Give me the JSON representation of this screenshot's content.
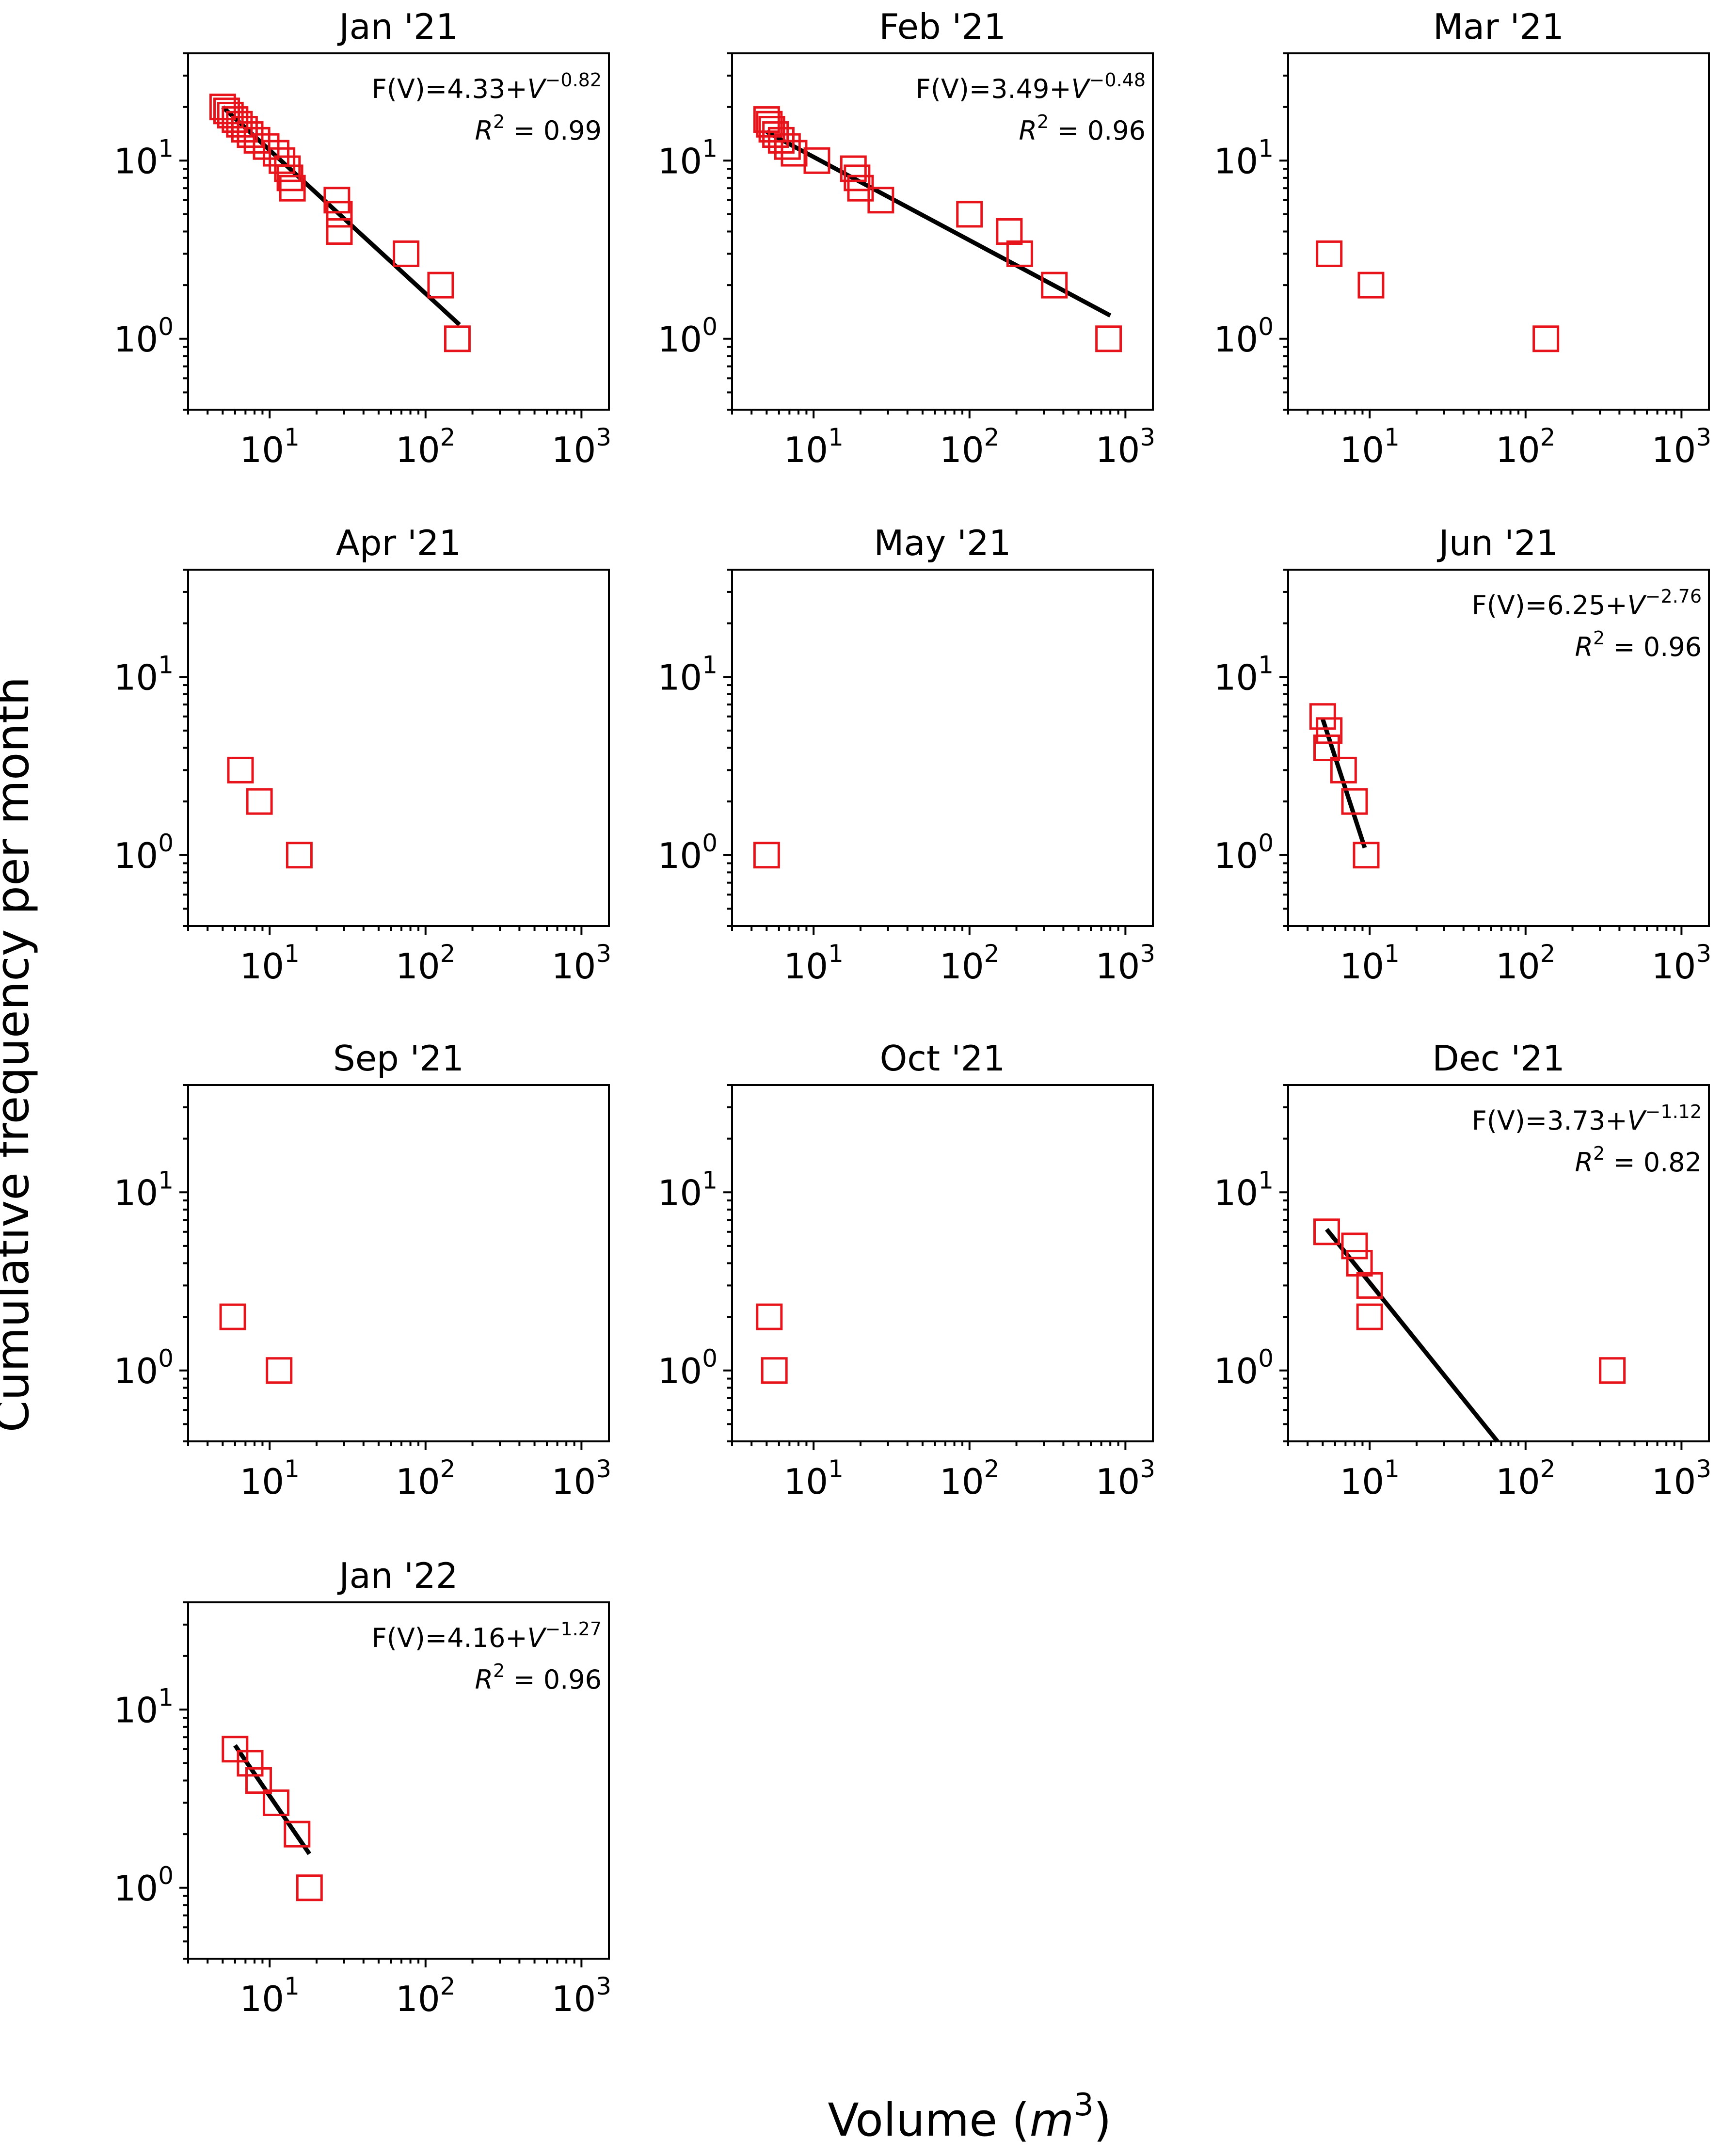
{
  "figure": {
    "xlabel": "Volume (m3)",
    "xlabel_parts": {
      "prefix": "Volume (",
      "var": "m",
      "sup": "3",
      "suffix": ")"
    },
    "ylabel": "Cumulative frequency per month",
    "colors": {
      "marker": "#e8141c",
      "fit": "#000000",
      "axes": "#000000"
    }
  },
  "chart_data": [
    {
      "type": "scatter",
      "title": "Jan '21",
      "xscale": "log",
      "yscale": "log",
      "xlim": [
        3,
        1500
      ],
      "ylim": [
        0.4,
        40
      ],
      "xticks": [
        {
          "base": "10",
          "exp": "1",
          "value": 10
        },
        {
          "base": "10",
          "exp": "2",
          "value": 100
        },
        {
          "base": "10",
          "exp": "3",
          "value": 1000
        }
      ],
      "yticks": [
        {
          "base": "10",
          "exp": "0",
          "value": 1
        },
        {
          "base": "10",
          "exp": "1",
          "value": 10
        }
      ],
      "points": [
        [
          5.0,
          20
        ],
        [
          5.3,
          19
        ],
        [
          5.6,
          18
        ],
        [
          6.0,
          17
        ],
        [
          6.4,
          16
        ],
        [
          6.9,
          15
        ],
        [
          7.5,
          14
        ],
        [
          8.3,
          13
        ],
        [
          9.5,
          12
        ],
        [
          11,
          11
        ],
        [
          12,
          10
        ],
        [
          13,
          9
        ],
        [
          13.5,
          8
        ],
        [
          14,
          7
        ],
        [
          27,
          6
        ],
        [
          28,
          5
        ],
        [
          28,
          4
        ],
        [
          75,
          3
        ],
        [
          125,
          2
        ],
        [
          160,
          1
        ]
      ],
      "fit": {
        "x": [
          5.0,
          165
        ],
        "y": [
          20,
          1.2
        ],
        "equation": {
          "text": "F(V)=4.33+",
          "var": "V",
          "exp": "−0.82"
        },
        "r2": {
          "var": "R",
          "exp": "2",
          "text": " = 0.99"
        }
      }
    },
    {
      "type": "scatter",
      "title": "Feb '21",
      "xscale": "log",
      "yscale": "log",
      "xlim": [
        3,
        1500
      ],
      "ylim": [
        0.4,
        40
      ],
      "xticks": [
        {
          "base": "10",
          "exp": "1",
          "value": 10
        },
        {
          "base": "10",
          "exp": "2",
          "value": 100
        },
        {
          "base": "10",
          "exp": "3",
          "value": 1000
        }
      ],
      "yticks": [
        {
          "base": "10",
          "exp": "0",
          "value": 1
        },
        {
          "base": "10",
          "exp": "1",
          "value": 10
        }
      ],
      "points": [
        [
          5.0,
          17
        ],
        [
          5.2,
          16
        ],
        [
          5.4,
          15
        ],
        [
          5.7,
          14
        ],
        [
          6.2,
          13
        ],
        [
          6.8,
          12
        ],
        [
          7.5,
          11
        ],
        [
          10.5,
          10
        ],
        [
          18,
          9
        ],
        [
          19,
          8
        ],
        [
          20,
          7
        ],
        [
          27,
          6
        ],
        [
          100,
          5
        ],
        [
          180,
          4
        ],
        [
          210,
          3
        ],
        [
          350,
          2
        ],
        [
          780,
          1
        ]
      ],
      "fit": {
        "x": [
          5.0,
          800
        ],
        "y": [
          14.5,
          1.35
        ],
        "equation": {
          "text": "F(V)=3.49+",
          "var": "V",
          "exp": "−0.48"
        },
        "r2": {
          "var": "R",
          "exp": "2",
          "text": " = 0.96"
        }
      }
    },
    {
      "type": "scatter",
      "title": "Mar '21",
      "xscale": "log",
      "yscale": "log",
      "xlim": [
        3,
        1500
      ],
      "ylim": [
        0.4,
        40
      ],
      "xticks": [
        {
          "base": "10",
          "exp": "1",
          "value": 10
        },
        {
          "base": "10",
          "exp": "2",
          "value": 100
        },
        {
          "base": "10",
          "exp": "3",
          "value": 1000
        }
      ],
      "yticks": [
        {
          "base": "10",
          "exp": "0",
          "value": 1
        },
        {
          "base": "10",
          "exp": "1",
          "value": 10
        }
      ],
      "points": [
        [
          5.5,
          3
        ],
        [
          10.2,
          2
        ],
        [
          135,
          1
        ]
      ],
      "fit": null
    },
    {
      "type": "scatter",
      "title": "Apr '21",
      "xscale": "log",
      "yscale": "log",
      "xlim": [
        3,
        1500
      ],
      "ylim": [
        0.4,
        40
      ],
      "xticks": [
        {
          "base": "10",
          "exp": "1",
          "value": 10
        },
        {
          "base": "10",
          "exp": "2",
          "value": 100
        },
        {
          "base": "10",
          "exp": "3",
          "value": 1000
        }
      ],
      "yticks": [
        {
          "base": "10",
          "exp": "0",
          "value": 1
        },
        {
          "base": "10",
          "exp": "1",
          "value": 10
        }
      ],
      "points": [
        [
          6.5,
          3
        ],
        [
          8.6,
          2
        ],
        [
          15.5,
          1
        ]
      ],
      "fit": null
    },
    {
      "type": "scatter",
      "title": "May '21",
      "xscale": "log",
      "yscale": "log",
      "xlim": [
        3,
        1500
      ],
      "ylim": [
        0.4,
        40
      ],
      "xticks": [
        {
          "base": "10",
          "exp": "1",
          "value": 10
        },
        {
          "base": "10",
          "exp": "2",
          "value": 100
        },
        {
          "base": "10",
          "exp": "3",
          "value": 1000
        }
      ],
      "yticks": [
        {
          "base": "10",
          "exp": "0",
          "value": 1
        },
        {
          "base": "10",
          "exp": "1",
          "value": 10
        }
      ],
      "points": [
        [
          5.0,
          1
        ]
      ],
      "fit": null
    },
    {
      "type": "scatter",
      "title": "Jun '21",
      "xscale": "log",
      "yscale": "log",
      "xlim": [
        3,
        1500
      ],
      "ylim": [
        0.4,
        40
      ],
      "xticks": [
        {
          "base": "10",
          "exp": "1",
          "value": 10
        },
        {
          "base": "10",
          "exp": "2",
          "value": 100
        },
        {
          "base": "10",
          "exp": "3",
          "value": 1000
        }
      ],
      "yticks": [
        {
          "base": "10",
          "exp": "0",
          "value": 1
        },
        {
          "base": "10",
          "exp": "1",
          "value": 10
        }
      ],
      "points": [
        [
          5.0,
          6
        ],
        [
          5.5,
          5
        ],
        [
          5.3,
          4
        ],
        [
          6.8,
          3
        ],
        [
          8.0,
          2
        ],
        [
          9.5,
          1
        ]
      ],
      "fit": {
        "x": [
          5.0,
          9.3
        ],
        "y": [
          5.8,
          1.1
        ],
        "equation": {
          "text": "F(V)=6.25+",
          "var": "V",
          "exp": "−2.76"
        },
        "r2": {
          "var": "R",
          "exp": "2",
          "text": " = 0.96"
        }
      }
    },
    {
      "type": "scatter",
      "title": "Sep '21",
      "xscale": "log",
      "yscale": "log",
      "xlim": [
        3,
        1500
      ],
      "ylim": [
        0.4,
        40
      ],
      "xticks": [
        {
          "base": "10",
          "exp": "1",
          "value": 10
        },
        {
          "base": "10",
          "exp": "2",
          "value": 100
        },
        {
          "base": "10",
          "exp": "3",
          "value": 1000
        }
      ],
      "yticks": [
        {
          "base": "10",
          "exp": "0",
          "value": 1
        },
        {
          "base": "10",
          "exp": "1",
          "value": 10
        }
      ],
      "points": [
        [
          5.8,
          2
        ],
        [
          11.5,
          1
        ]
      ],
      "fit": null
    },
    {
      "type": "scatter",
      "title": "Oct '21",
      "xscale": "log",
      "yscale": "log",
      "xlim": [
        3,
        1500
      ],
      "ylim": [
        0.4,
        40
      ],
      "xticks": [
        {
          "base": "10",
          "exp": "1",
          "value": 10
        },
        {
          "base": "10",
          "exp": "2",
          "value": 100
        },
        {
          "base": "10",
          "exp": "3",
          "value": 1000
        }
      ],
      "yticks": [
        {
          "base": "10",
          "exp": "0",
          "value": 1
        },
        {
          "base": "10",
          "exp": "1",
          "value": 10
        }
      ],
      "points": [
        [
          5.2,
          2
        ],
        [
          5.6,
          1
        ]
      ],
      "fit": null
    },
    {
      "type": "scatter",
      "title": "Dec '21",
      "xscale": "log",
      "yscale": "log",
      "xlim": [
        3,
        1500
      ],
      "ylim": [
        0.4,
        40
      ],
      "xticks": [
        {
          "base": "10",
          "exp": "1",
          "value": 10
        },
        {
          "base": "10",
          "exp": "2",
          "value": 100
        },
        {
          "base": "10",
          "exp": "3",
          "value": 1000
        }
      ],
      "yticks": [
        {
          "base": "10",
          "exp": "0",
          "value": 1
        },
        {
          "base": "10",
          "exp": "1",
          "value": 10
        }
      ],
      "points": [
        [
          5.3,
          6
        ],
        [
          8.0,
          5
        ],
        [
          8.6,
          4
        ],
        [
          10,
          3
        ],
        [
          10,
          2
        ],
        [
          360,
          1
        ]
      ],
      "fit": {
        "x": [
          5.3,
          66
        ],
        "y": [
          6.2,
          0.4
        ],
        "equation": {
          "text": "F(V)=3.73+",
          "var": "V",
          "exp": "−1.12"
        },
        "r2": {
          "var": "R",
          "exp": "2",
          "text": " = 0.82"
        }
      }
    },
    {
      "type": "scatter",
      "title": "Jan '22",
      "xscale": "log",
      "yscale": "log",
      "xlim": [
        3,
        1500
      ],
      "ylim": [
        0.4,
        40
      ],
      "xticks": [
        {
          "base": "10",
          "exp": "1",
          "value": 10
        },
        {
          "base": "10",
          "exp": "2",
          "value": 100
        },
        {
          "base": "10",
          "exp": "3",
          "value": 1000
        }
      ],
      "yticks": [
        {
          "base": "10",
          "exp": "0",
          "value": 1
        },
        {
          "base": "10",
          "exp": "1",
          "value": 10
        }
      ],
      "points": [
        [
          6.0,
          6
        ],
        [
          7.5,
          5
        ],
        [
          8.5,
          4
        ],
        [
          11,
          3
        ],
        [
          15,
          2
        ],
        [
          18,
          1
        ]
      ],
      "fit": {
        "x": [
          6.0,
          18
        ],
        "y": [
          6.3,
          1.55
        ],
        "equation": {
          "text": "F(V)=4.16+",
          "var": "V",
          "exp": "−1.27"
        },
        "r2": {
          "var": "R",
          "exp": "2",
          "text": " = 0.96"
        }
      }
    }
  ]
}
